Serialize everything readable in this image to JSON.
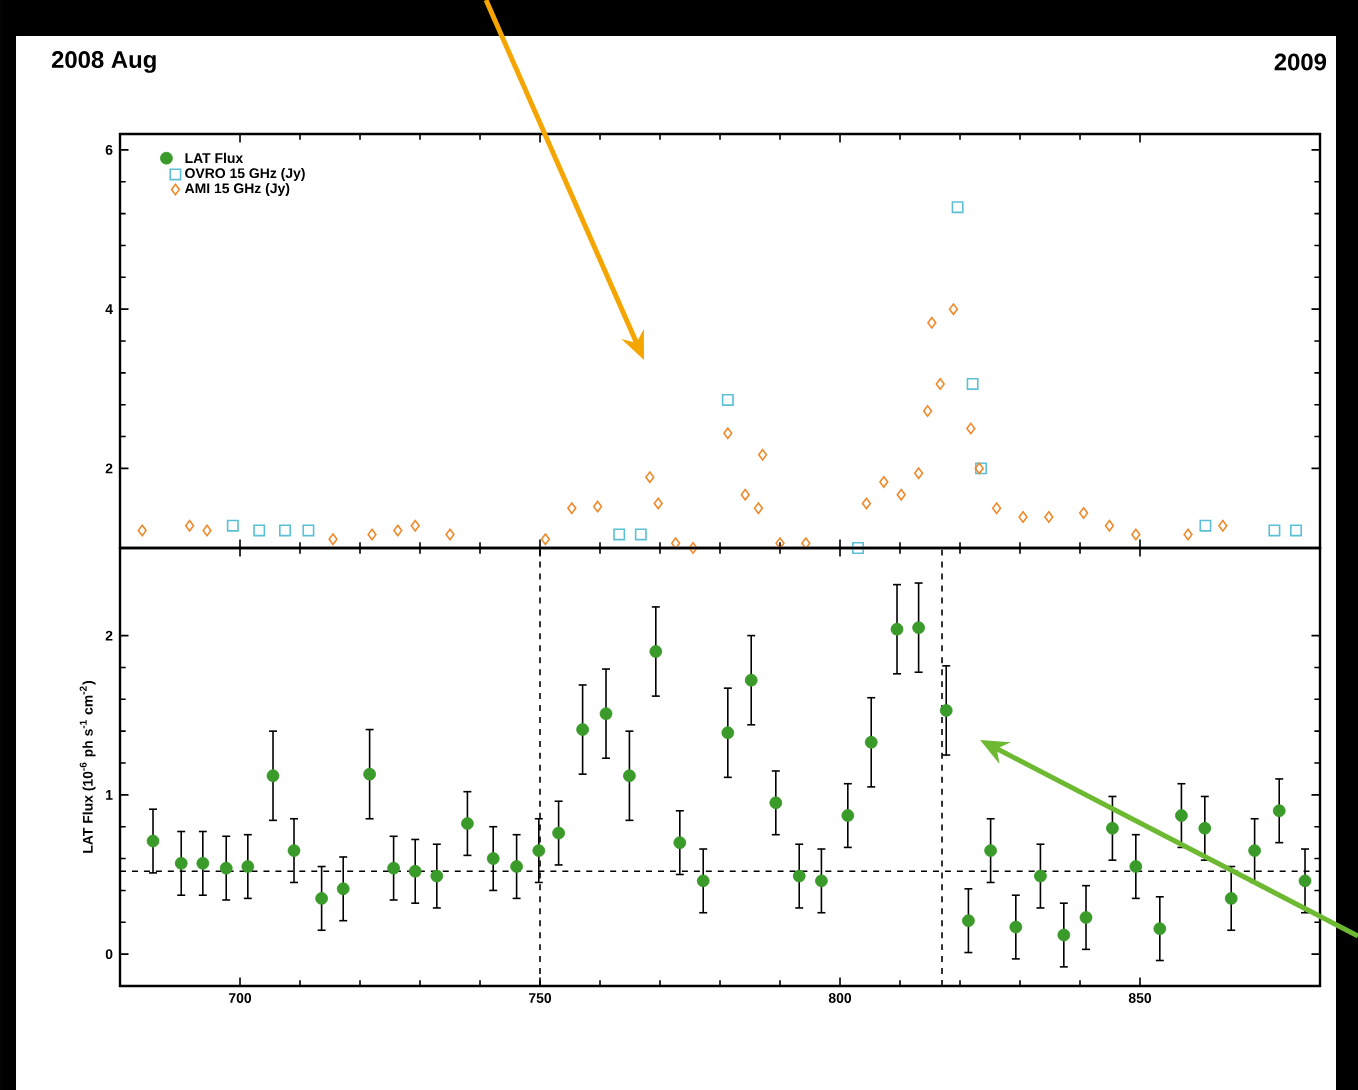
{
  "chart_data": [
    {
      "type": "scatter",
      "title": "2008 Aug",
      "annotations": [
        "2009"
      ],
      "legend": "top left",
      "tick_labels": "y",
      "xlim": [
        680,
        880
      ],
      "xticks": [
        700,
        750,
        800,
        850
      ],
      "ylim": [
        1,
        6.2
      ],
      "yticks": [
        2,
        4,
        6
      ],
      "series": [
        {
          "name": "OVRO 15 GHz (Jy)",
          "color": "#5bbfd6",
          "marker": "square",
          "x": [
            698.8,
            703.2,
            707.5,
            711.4,
            763.2,
            766.8,
            781.3,
            803.0,
            819.6,
            822.1,
            823.5,
            860.9,
            872.4,
            876.0
          ],
          "values": [
            1.28,
            1.22,
            1.22,
            1.22,
            1.17,
            1.17,
            2.86,
            1.0,
            5.28,
            3.06,
            2.0,
            1.28,
            1.22,
            1.22
          ]
        },
        {
          "name": "AMI 15 GHz (Jy)",
          "color": "#f0892a",
          "marker": "diamond",
          "x": [
            683.7,
            691.6,
            694.5,
            715.5,
            722.0,
            726.3,
            729.2,
            735.0,
            750.9,
            755.3,
            759.6,
            768.3,
            769.7,
            772.6,
            775.5,
            781.3,
            784.2,
            787.1,
            786.4,
            790.0,
            794.3,
            804.4,
            807.3,
            810.2,
            813.1,
            815.3,
            818.9,
            814.6,
            816.7,
            821.8,
            823.2,
            826.1,
            830.5,
            834.8,
            840.6,
            844.9,
            849.3,
            858.0,
            863.8
          ],
          "values": [
            1.22,
            1.28,
            1.22,
            1.11,
            1.17,
            1.22,
            1.28,
            1.17,
            1.11,
            1.5,
            1.52,
            1.89,
            1.56,
            1.06,
            1.0,
            2.44,
            1.67,
            2.17,
            1.5,
            1.06,
            1.06,
            1.56,
            1.83,
            1.67,
            1.94,
            3.83,
            4.0,
            2.72,
            3.06,
            2.5,
            2.0,
            1.5,
            1.39,
            1.39,
            1.44,
            1.28,
            1.17,
            1.17,
            1.28
          ]
        }
      ]
    },
    {
      "type": "scatter",
      "ylabel": "LAT Flux (10$^{-6}$ ph s$^{-1}$ cm$^{-2}$)",
      "xlim": [
        680,
        880
      ],
      "xticks": [
        700,
        750,
        800,
        850
      ],
      "ylim": [
        -0.2,
        2.55
      ],
      "yticks": [
        0,
        1,
        2
      ],
      "ref_lines": [
        {
          "axis": "y",
          "value": 0.52,
          "line_style": "dashed"
        },
        {
          "axis": "x",
          "value": 750,
          "line_style": "dashed"
        },
        {
          "axis": "x",
          "value": 817,
          "line_style": "dashed"
        }
      ],
      "series": [
        {
          "name": "LAT Flux",
          "color": "#3a9a2a",
          "marker": "circle",
          "x": [
            685.5,
            690.2,
            693.8,
            697.7,
            701.3,
            705.5,
            709.0,
            713.6,
            717.2,
            721.6,
            725.6,
            729.2,
            732.8,
            737.9,
            742.2,
            746.1,
            749.8,
            753.1,
            757.1,
            761.0,
            764.9,
            769.3,
            773.3,
            777.2,
            781.3,
            785.2,
            789.3,
            793.2,
            796.9,
            801.3,
            805.2,
            809.5,
            813.1,
            817.7,
            821.4,
            825.1,
            829.3,
            833.4,
            837.3,
            841.0,
            845.4,
            849.3,
            853.3,
            856.9,
            860.8,
            865.2,
            869.1,
            873.2,
            877.5
          ],
          "values": [
            0.71,
            0.57,
            0.57,
            0.54,
            0.55,
            1.12,
            0.65,
            0.35,
            0.41,
            1.13,
            0.54,
            0.52,
            0.49,
            0.82,
            0.6,
            0.55,
            0.65,
            0.76,
            1.41,
            1.51,
            1.12,
            1.9,
            0.7,
            0.46,
            1.39,
            1.72,
            0.95,
            0.49,
            0.46,
            0.87,
            1.33,
            2.04,
            2.05,
            1.53,
            0.21,
            0.65,
            0.17,
            0.49,
            0.12,
            0.23,
            0.79,
            0.55,
            0.16,
            0.87,
            0.79,
            0.35,
            0.65,
            0.9,
            0.46
          ],
          "errors": [
            0.2,
            0.2,
            0.2,
            0.2,
            0.2,
            0.28,
            0.2,
            0.2,
            0.2,
            0.28,
            0.2,
            0.2,
            0.2,
            0.2,
            0.2,
            0.2,
            0.2,
            0.2,
            0.28,
            0.28,
            0.28,
            0.28,
            0.2,
            0.2,
            0.28,
            0.28,
            0.2,
            0.2,
            0.2,
            0.2,
            0.28,
            0.28,
            0.28,
            0.28,
            0.2,
            0.2,
            0.2,
            0.2,
            0.2,
            0.2,
            0.2,
            0.2,
            0.2,
            0.2,
            0.2,
            0.2,
            0.2,
            0.2,
            0.2
          ]
        }
      ]
    }
  ]
}
